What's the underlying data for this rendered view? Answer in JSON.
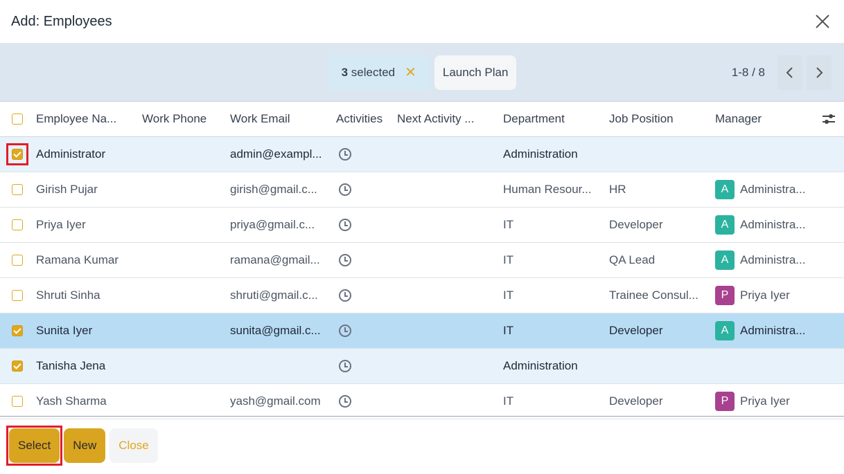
{
  "dialog": {
    "title": "Add: Employees"
  },
  "toolbar": {
    "selected_count": "3",
    "selected_label": " selected",
    "launch_plan_label": "Launch Plan",
    "pager_text": "1-8 / 8"
  },
  "columns": {
    "name": "Employee Na...",
    "phone": "Work Phone",
    "email": "Work Email",
    "activities": "Activities",
    "next_activity": "Next Activity ...",
    "department": "Department",
    "job_position": "Job Position",
    "manager": "Manager"
  },
  "rows": [
    {
      "name": "Administrator",
      "phone": "",
      "email": "admin@exampl...",
      "department": "Administration",
      "job": "",
      "manager": "",
      "avatar": "",
      "avatar_color": "",
      "checked": true,
      "highlight": true
    },
    {
      "name": "Girish Pujar",
      "phone": "",
      "email": "girish@gmail.c...",
      "department": "Human Resour...",
      "job": "HR",
      "manager": "Administra...",
      "avatar": "A",
      "avatar_color": "#2bb3a0",
      "checked": false,
      "highlight": false
    },
    {
      "name": "Priya Iyer",
      "phone": "",
      "email": "priya@gmail.c...",
      "department": "IT",
      "job": "Developer",
      "manager": "Administra...",
      "avatar": "A",
      "avatar_color": "#2bb3a0",
      "checked": false,
      "highlight": false
    },
    {
      "name": "Ramana Kumar",
      "phone": "",
      "email": "ramana@gmail...",
      "department": "IT",
      "job": "QA Lead",
      "manager": "Administra...",
      "avatar": "A",
      "avatar_color": "#2bb3a0",
      "checked": false,
      "highlight": false
    },
    {
      "name": "Shruti Sinha",
      "phone": "",
      "email": "shruti@gmail.c...",
      "department": "IT",
      "job": "Trainee Consul...",
      "manager": "Priya Iyer",
      "avatar": "P",
      "avatar_color": "#a8418f",
      "checked": false,
      "highlight": false
    },
    {
      "name": "Sunita Iyer",
      "phone": "",
      "email": "sunita@gmail.c...",
      "department": "IT",
      "job": "Developer",
      "manager": "Administra...",
      "avatar": "A",
      "avatar_color": "#2bb3a0",
      "checked": true,
      "highlight": false
    },
    {
      "name": "Tanisha Jena",
      "phone": "",
      "email": "",
      "department": "Administration",
      "job": "",
      "manager": "",
      "avatar": "",
      "avatar_color": "",
      "checked": true,
      "highlight": false
    },
    {
      "name": "Yash Sharma",
      "phone": "",
      "email": "yash@gmail.com",
      "department": "IT",
      "job": "Developer",
      "manager": "Priya Iyer",
      "avatar": "P",
      "avatar_color": "#a8418f",
      "checked": false,
      "highlight": false
    }
  ],
  "footer": {
    "select_label": "Select",
    "new_label": "New",
    "close_label": "Close"
  },
  "colors": {
    "accent": "#e0a81e",
    "primary_button": "#d9a520",
    "toolbar_bg": "#dbe6f0",
    "selected_row_bg": "#e7f2fb",
    "active_row_bg": "#b9dcf5",
    "highlight_outline": "#e11d2a"
  },
  "icons": {
    "close": "close-icon",
    "clear_selection": "clear-selection-icon",
    "prev": "chevron-left-icon",
    "next": "chevron-right-icon",
    "activity": "clock-icon",
    "column_options": "sliders-icon"
  }
}
